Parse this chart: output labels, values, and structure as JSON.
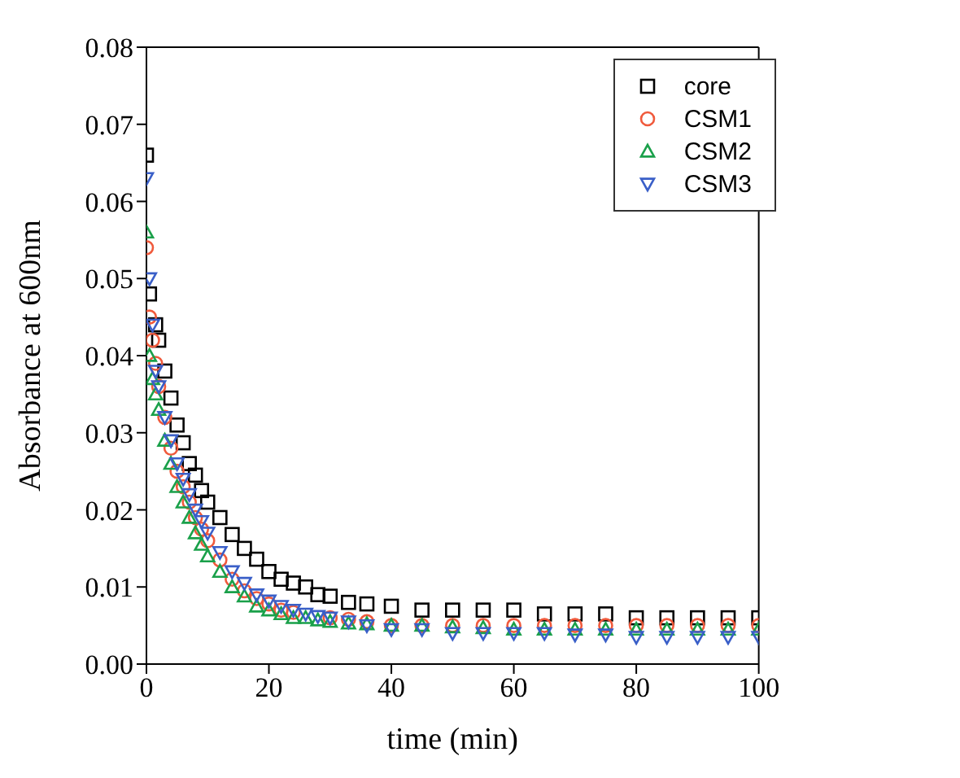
{
  "chart_data": {
    "type": "scatter",
    "xlabel": "time (min)",
    "ylabel": "Absorbance at 600nm",
    "x": [
      0,
      0.5,
      1,
      1.5,
      2,
      3,
      4,
      5,
      6,
      7,
      8,
      9,
      10,
      12,
      14,
      16,
      18,
      20,
      22,
      24,
      26,
      28,
      30,
      33,
      36,
      40,
      45,
      50,
      55,
      60,
      65,
      70,
      75,
      80,
      85,
      90,
      95,
      100
    ],
    "series": [
      {
        "name": "core",
        "color": "#000000",
        "marker": "square",
        "values": [
          0.066,
          0.048,
          null,
          0.044,
          0.042,
          0.038,
          0.0345,
          0.031,
          0.0287,
          0.026,
          0.0245,
          0.0225,
          0.021,
          0.019,
          0.0168,
          0.015,
          0.0136,
          0.012,
          0.011,
          0.0105,
          0.01,
          0.009,
          0.0088,
          0.008,
          0.0078,
          0.0075,
          0.007,
          0.007,
          0.007,
          0.007,
          0.0065,
          0.0065,
          0.0065,
          0.006,
          0.006,
          0.006,
          0.006,
          0.006
        ]
      },
      {
        "name": "CSM1",
        "color": "#f05a3c",
        "marker": "circle",
        "values": [
          0.054,
          0.045,
          0.042,
          0.039,
          0.036,
          0.032,
          0.028,
          0.025,
          0.023,
          0.021,
          0.019,
          0.0175,
          0.016,
          0.0135,
          0.011,
          0.0095,
          0.0085,
          0.0078,
          0.007,
          0.0067,
          null,
          null,
          0.006,
          0.0058,
          0.0055,
          0.005,
          0.005,
          0.005,
          0.005,
          0.005,
          0.005,
          0.005,
          0.005,
          0.005,
          0.005,
          0.005,
          0.005,
          0.005
        ]
      },
      {
        "name": "CSM2",
        "color": "#1aa04a",
        "marker": "triangle",
        "values": [
          0.056,
          0.04,
          0.037,
          0.035,
          0.033,
          0.029,
          0.026,
          0.023,
          0.021,
          0.019,
          0.017,
          0.0155,
          0.014,
          0.012,
          0.01,
          0.0088,
          0.0075,
          0.007,
          0.0065,
          0.006,
          0.006,
          0.0057,
          0.0055,
          0.0053,
          0.0052,
          0.005,
          0.005,
          0.0048,
          0.0047,
          0.0045,
          0.0045,
          0.0045,
          0.0045,
          0.0045,
          0.0045,
          0.0045,
          0.0045,
          0.0045
        ]
      },
      {
        "name": "CSM3",
        "color": "#3a5fc8",
        "marker": "triangle-down",
        "values": [
          0.063,
          0.05,
          0.044,
          0.038,
          0.036,
          0.032,
          0.029,
          0.026,
          0.024,
          0.022,
          0.02,
          0.0185,
          0.017,
          0.0145,
          0.012,
          0.0105,
          0.009,
          0.0082,
          0.0075,
          0.007,
          0.0065,
          0.0062,
          0.006,
          0.0055,
          0.005,
          0.0045,
          0.0045,
          0.004,
          0.004,
          0.004,
          0.004,
          0.0038,
          0.0038,
          0.0035,
          0.0035,
          0.0035,
          0.0035,
          0.0035
        ]
      }
    ],
    "xlim": [
      0,
      100
    ],
    "xticks": [
      0,
      20,
      40,
      60,
      80,
      100
    ],
    "ylim": [
      0,
      0.08
    ],
    "yticks": [
      {
        "value": 0,
        "label": "0.00"
      },
      {
        "value": 0.01,
        "label": "0.01"
      },
      {
        "value": 0.02,
        "label": "0.02"
      },
      {
        "value": 0.03,
        "label": "0.03"
      },
      {
        "value": 0.04,
        "label": "0.04"
      },
      {
        "value": 0.05,
        "label": "0.05"
      },
      {
        "value": 0.06,
        "label": "0.06"
      },
      {
        "value": 0.07,
        "label": "0.07"
      },
      {
        "value": 0.08,
        "label": "0.08"
      }
    ],
    "grid": false,
    "legend": "top right"
  }
}
